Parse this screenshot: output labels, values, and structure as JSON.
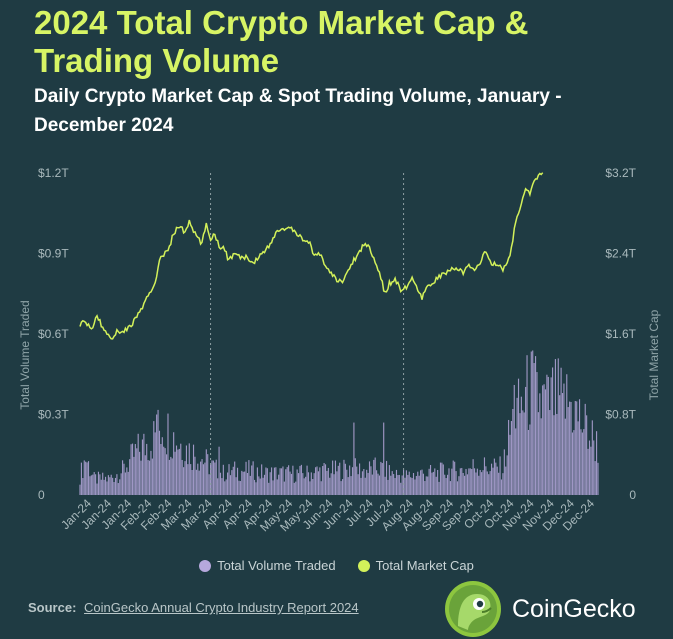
{
  "title": "2024 Total Crypto Market Cap & Trading Volume",
  "subtitle": "Daily Crypto Market Cap & Spot Trading Volume, January - December 2024",
  "colors": {
    "background": "#1f3b43",
    "title": "#d7f465",
    "volume": "#b6a8dc",
    "market_cap": "#d3f15a"
  },
  "legend": {
    "volume_label": "Total Volume Traded",
    "market_cap_label": "Total Market Cap"
  },
  "source": {
    "label": "Source:",
    "text": "CoinGecko Annual Crypto Industry Report 2024"
  },
  "brand": {
    "name": "CoinGecko",
    "logo_icon": "gecko-logo-icon"
  },
  "chart_data": {
    "type": "bar+line",
    "x_tick_labels": [
      "Jan-24",
      "Jan-24",
      "Jan-24",
      "Feb-24",
      "Feb-24",
      "Mar-24",
      "Mar-24",
      "Apr-24",
      "Apr-24",
      "Apr-24",
      "May-24",
      "May-24",
      "Jun-24",
      "Jun-24",
      "Jul-24",
      "Jul-24",
      "Aug-24",
      "Aug-24",
      "Sep-24",
      "Sep-24",
      "Oct-24",
      "Oct-24",
      "Nov-24",
      "Nov-24",
      "Dec-24",
      "Dec-24"
    ],
    "y_left": {
      "title": "Total Volume Traded",
      "ticks": [
        "0",
        "$0.3T",
        "$0.6T",
        "$0.9T",
        "$1.2T"
      ],
      "range": [
        0,
        1.2
      ]
    },
    "y_right": {
      "title": "Total Market Cap",
      "ticks": [
        "0",
        "$0.8T",
        "$1.6T",
        "$2.4T",
        "$3.2T"
      ],
      "range": [
        0,
        3.2
      ]
    },
    "vertical_reference_days": [
      92,
      228
    ],
    "series": [
      {
        "name": "Total Volume Traded",
        "kind": "bar",
        "axis": "left",
        "unit": "T",
        "anchors": [
          [
            0,
            0.07
          ],
          [
            4,
            0.14
          ],
          [
            10,
            0.06
          ],
          [
            20,
            0.06
          ],
          [
            30,
            0.09
          ],
          [
            40,
            0.16
          ],
          [
            50,
            0.2
          ],
          [
            58,
            0.26
          ],
          [
            65,
            0.22
          ],
          [
            75,
            0.17
          ],
          [
            85,
            0.14
          ],
          [
            92,
            0.11
          ],
          [
            100,
            0.08
          ],
          [
            110,
            0.09
          ],
          [
            120,
            0.09
          ],
          [
            130,
            0.08
          ],
          [
            140,
            0.08
          ],
          [
            150,
            0.08
          ],
          [
            160,
            0.08
          ],
          [
            170,
            0.09
          ],
          [
            180,
            0.09
          ],
          [
            190,
            0.1
          ],
          [
            200,
            0.09
          ],
          [
            210,
            0.1
          ],
          [
            220,
            0.08
          ],
          [
            230,
            0.07
          ],
          [
            240,
            0.08
          ],
          [
            250,
            0.08
          ],
          [
            260,
            0.09
          ],
          [
            270,
            0.09
          ],
          [
            280,
            0.11
          ],
          [
            290,
            0.1
          ],
          [
            298,
            0.1
          ],
          [
            304,
            0.26
          ],
          [
            310,
            0.32
          ],
          [
            318,
            0.4
          ],
          [
            325,
            0.34
          ],
          [
            335,
            0.36
          ],
          [
            345,
            0.34
          ],
          [
            355,
            0.26
          ],
          [
            365,
            0.18
          ]
        ],
        "spikes": [
          [
            54,
            0.3
          ],
          [
            98,
            0.18
          ],
          [
            193,
            0.27
          ],
          [
            214,
            0.27
          ],
          [
            306,
            0.41
          ],
          [
            330,
            0.44
          ],
          [
            340,
            0.38
          ],
          [
            360,
            0.18
          ]
        ]
      },
      {
        "name": "Total Market Cap",
        "kind": "line",
        "axis": "right",
        "unit": "T",
        "anchors": [
          [
            0,
            1.7
          ],
          [
            3,
            1.72
          ],
          [
            8,
            1.65
          ],
          [
            12,
            1.78
          ],
          [
            16,
            1.66
          ],
          [
            22,
            1.56
          ],
          [
            26,
            1.62
          ],
          [
            32,
            1.64
          ],
          [
            36,
            1.68
          ],
          [
            40,
            1.78
          ],
          [
            44,
            1.86
          ],
          [
            47,
            1.95
          ],
          [
            50,
            2.02
          ],
          [
            53,
            2.12
          ],
          [
            56,
            2.33
          ],
          [
            60,
            2.4
          ],
          [
            63,
            2.47
          ],
          [
            66,
            2.6
          ],
          [
            70,
            2.68
          ],
          [
            74,
            2.6
          ],
          [
            77,
            2.72
          ],
          [
            80,
            2.62
          ],
          [
            83,
            2.55
          ],
          [
            86,
            2.5
          ],
          [
            89,
            2.7
          ],
          [
            92,
            2.55
          ],
          [
            95,
            2.6
          ],
          [
            98,
            2.47
          ],
          [
            102,
            2.45
          ],
          [
            104,
            2.34
          ],
          [
            107,
            2.37
          ],
          [
            110,
            2.39
          ],
          [
            114,
            2.35
          ],
          [
            118,
            2.38
          ],
          [
            121,
            2.3
          ],
          [
            125,
            2.35
          ],
          [
            129,
            2.42
          ],
          [
            134,
            2.48
          ],
          [
            139,
            2.63
          ],
          [
            143,
            2.64
          ],
          [
            148,
            2.65
          ],
          [
            152,
            2.6
          ],
          [
            157,
            2.55
          ],
          [
            162,
            2.5
          ],
          [
            165,
            2.36
          ],
          [
            169,
            2.4
          ],
          [
            173,
            2.28
          ],
          [
            177,
            2.2
          ],
          [
            182,
            2.12
          ],
          [
            186,
            2.14
          ],
          [
            191,
            2.29
          ],
          [
            196,
            2.4
          ],
          [
            200,
            2.49
          ],
          [
            204,
            2.47
          ],
          [
            208,
            2.32
          ],
          [
            212,
            2.15
          ],
          [
            215,
            2.0
          ],
          [
            218,
            2.1
          ],
          [
            222,
            2.15
          ],
          [
            226,
            2.04
          ],
          [
            230,
            2.06
          ],
          [
            234,
            2.17
          ],
          [
            238,
            2.02
          ],
          [
            241,
            1.95
          ],
          [
            244,
            2.05
          ],
          [
            249,
            2.12
          ],
          [
            254,
            2.18
          ],
          [
            260,
            2.22
          ],
          [
            265,
            2.27
          ],
          [
            270,
            2.2
          ],
          [
            274,
            2.28
          ],
          [
            278,
            2.23
          ],
          [
            282,
            2.32
          ],
          [
            286,
            2.42
          ],
          [
            290,
            2.3
          ],
          [
            294,
            2.28
          ],
          [
            298,
            2.25
          ],
          [
            301,
            2.3
          ],
          [
            304,
            2.45
          ],
          [
            307,
            2.72
          ],
          [
            309,
            2.78
          ],
          [
            312,
            2.96
          ],
          [
            314,
            3.02
          ],
          [
            317,
            3.0
          ],
          [
            320,
            3.1
          ],
          [
            324,
            3.19
          ],
          [
            326,
            3.21
          ]
        ]
      }
    ]
  }
}
